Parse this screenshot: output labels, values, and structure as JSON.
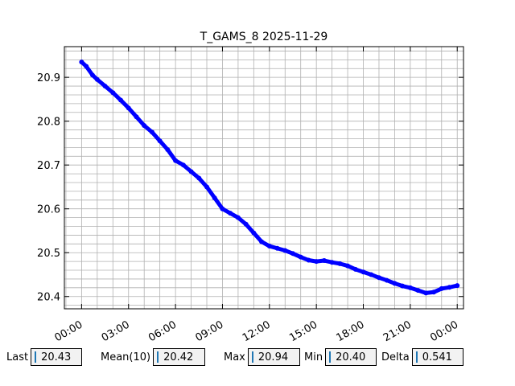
{
  "chart_data": {
    "type": "scatter",
    "title": "T_GAMS_8 2025-11-29",
    "xlabel": "",
    "ylabel": "",
    "x_unit": "hours",
    "xlim": [
      -1.1,
      24.4
    ],
    "ylim": [
      20.372,
      20.97
    ],
    "grid": true,
    "minor_grid": true,
    "x_ticks": [
      0,
      3,
      6,
      9,
      12,
      15,
      18,
      21,
      24
    ],
    "x_tick_labels": [
      "00:00",
      "03:00",
      "06:00",
      "09:00",
      "12:00",
      "15:00",
      "18:00",
      "21:00",
      "00:00"
    ],
    "y_ticks": [
      20.4,
      20.5,
      20.6,
      20.7,
      20.8,
      20.9
    ],
    "y_tick_labels": [
      "20.4",
      "20.5",
      "20.6",
      "20.7",
      "20.8",
      "20.9"
    ],
    "series": [
      {
        "color": "#0000ff",
        "x": [
          0.0,
          0.3,
          0.7,
          1.0,
          1.5,
          2.0,
          2.5,
          3.0,
          3.5,
          4.0,
          4.5,
          5.0,
          5.5,
          6.0,
          6.5,
          7.0,
          7.5,
          8.0,
          8.5,
          9.0,
          9.5,
          10.0,
          10.5,
          11.0,
          11.5,
          12.0,
          12.5,
          13.0,
          13.5,
          14.0,
          14.5,
          15.0,
          15.5,
          16.0,
          16.5,
          17.0,
          17.5,
          18.0,
          18.5,
          19.0,
          19.5,
          20.0,
          20.5,
          21.0,
          21.5,
          22.0,
          22.5,
          23.0,
          23.5,
          24.0
        ],
        "y": [
          20.935,
          20.925,
          20.905,
          20.895,
          20.88,
          20.865,
          20.848,
          20.83,
          20.81,
          20.79,
          20.775,
          20.755,
          20.735,
          20.71,
          20.7,
          20.685,
          20.67,
          20.65,
          20.625,
          20.6,
          20.59,
          20.58,
          20.565,
          20.545,
          20.525,
          20.515,
          20.51,
          20.505,
          20.498,
          20.49,
          20.483,
          20.48,
          20.482,
          20.478,
          20.475,
          20.47,
          20.462,
          20.456,
          20.45,
          20.443,
          20.437,
          20.43,
          20.424,
          20.42,
          20.414,
          20.408,
          20.41,
          20.418,
          20.421,
          20.425
        ]
      }
    ]
  },
  "stats": [
    {
      "label": "Last",
      "value": "20.43"
    },
    {
      "label": "Mean(10)",
      "value": "20.42"
    },
    {
      "label": "Max",
      "value": "20.94"
    },
    {
      "label": "Min",
      "value": "20.40"
    },
    {
      "label": "Delta",
      "value": "0.541"
    }
  ]
}
